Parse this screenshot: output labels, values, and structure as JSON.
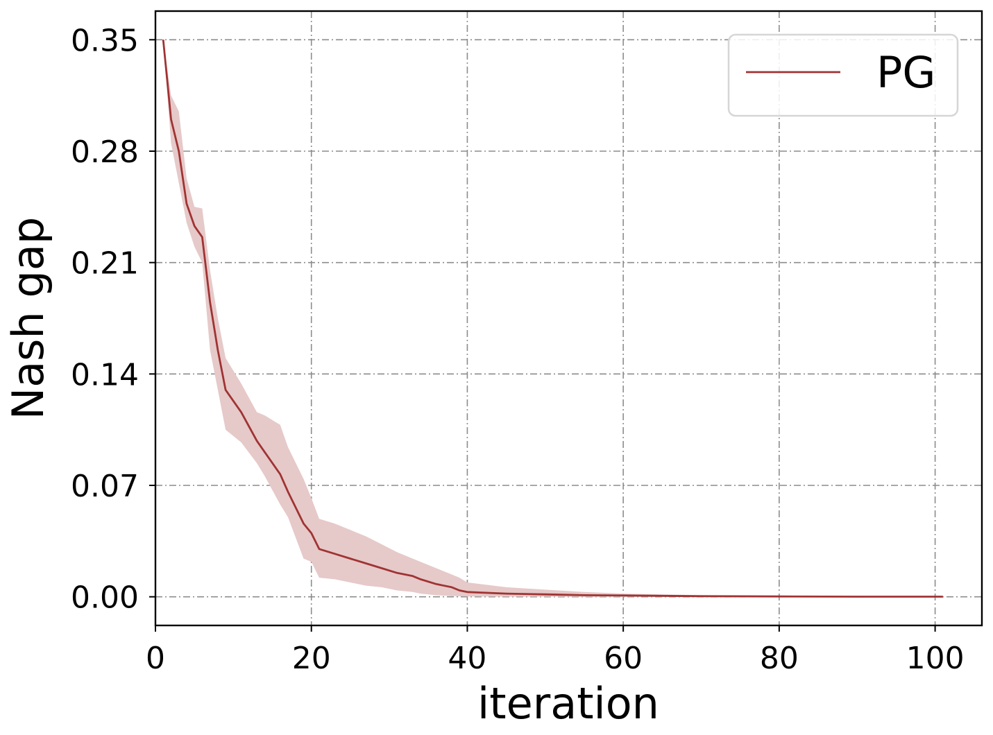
{
  "chart_data": {
    "type": "line",
    "xlabel": "iteration",
    "ylabel": "Nash gap",
    "xlim": [
      0,
      106
    ],
    "ylim": [
      -0.018,
      0.368
    ],
    "xticks": [
      0,
      20,
      40,
      60,
      80,
      100
    ],
    "yticks": [
      0.0,
      0.07,
      0.14,
      0.21,
      0.28,
      0.35
    ],
    "xtick_labels": [
      "0",
      "20",
      "40",
      "60",
      "80",
      "100"
    ],
    "ytick_labels": [
      "0.00",
      "0.07",
      "0.14",
      "0.21",
      "0.28",
      "0.35"
    ],
    "grid": true,
    "legend_position": "top-right",
    "colors": {
      "line": "#a03333",
      "band": "#e6c9c9",
      "grid": "#8c8c8c"
    },
    "series": [
      {
        "name": "PG",
        "x": [
          1,
          2,
          3,
          4,
          5,
          6,
          7,
          8,
          9,
          11,
          13,
          14,
          16,
          17,
          19,
          20,
          21,
          23,
          25,
          27,
          29,
          31,
          33,
          34,
          36,
          38,
          39,
          40,
          45,
          50,
          55,
          60,
          70,
          80,
          90,
          101
        ],
        "y": [
          0.35,
          0.3,
          0.28,
          0.247,
          0.233,
          0.226,
          0.185,
          0.155,
          0.13,
          0.116,
          0.098,
          0.091,
          0.077,
          0.066,
          0.046,
          0.04,
          0.03,
          0.027,
          0.024,
          0.021,
          0.018,
          0.015,
          0.013,
          0.011,
          0.008,
          0.006,
          0.004,
          0.003,
          0.002,
          0.0015,
          0.001,
          0.0008,
          0.0004,
          0.0002,
          0.0001,
          0.0001
        ],
        "lower": [
          0.35,
          0.285,
          0.26,
          0.235,
          0.22,
          0.21,
          0.155,
          0.13,
          0.105,
          0.097,
          0.084,
          0.076,
          0.058,
          0.05,
          0.024,
          0.022,
          0.012,
          0.011,
          0.009,
          0.007,
          0.006,
          0.004,
          0.003,
          0.002,
          0.001,
          0.0005,
          0.0003,
          0.0002,
          0.0001,
          0.0001,
          0.0,
          0.0,
          0.0,
          0.0,
          0.0,
          0.0
        ],
        "upper": [
          0.35,
          0.315,
          0.305,
          0.263,
          0.245,
          0.244,
          0.205,
          0.175,
          0.15,
          0.134,
          0.116,
          0.114,
          0.108,
          0.094,
          0.074,
          0.062,
          0.049,
          0.046,
          0.042,
          0.038,
          0.033,
          0.028,
          0.024,
          0.022,
          0.018,
          0.014,
          0.012,
          0.009,
          0.006,
          0.0045,
          0.003,
          0.002,
          0.001,
          0.0006,
          0.0004,
          0.0002
        ]
      }
    ]
  }
}
